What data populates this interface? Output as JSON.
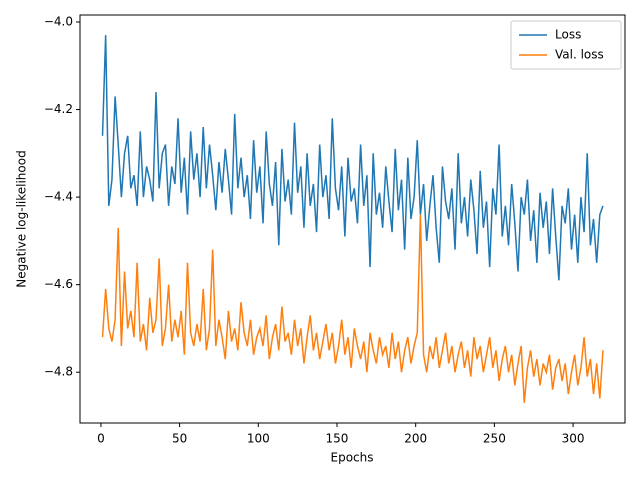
{
  "chart_data": {
    "type": "line",
    "xlabel": "Epochs",
    "ylabel": "Negative log-likelihood",
    "x": [
      1,
      3,
      5,
      7,
      9,
      11,
      13,
      15,
      17,
      19,
      21,
      23,
      25,
      27,
      29,
      31,
      33,
      35,
      37,
      39,
      41,
      43,
      45,
      47,
      49,
      51,
      53,
      55,
      57,
      59,
      61,
      63,
      65,
      67,
      69,
      71,
      73,
      75,
      77,
      79,
      81,
      83,
      85,
      87,
      89,
      91,
      93,
      95,
      97,
      99,
      101,
      103,
      105,
      107,
      109,
      111,
      113,
      115,
      117,
      119,
      121,
      123,
      125,
      127,
      129,
      131,
      133,
      135,
      137,
      139,
      141,
      143,
      145,
      147,
      149,
      151,
      153,
      155,
      157,
      159,
      161,
      163,
      165,
      167,
      169,
      171,
      173,
      175,
      177,
      179,
      181,
      183,
      185,
      187,
      189,
      191,
      193,
      195,
      197,
      199,
      201,
      203,
      205,
      207,
      209,
      211,
      213,
      215,
      217,
      219,
      221,
      223,
      225,
      227,
      229,
      231,
      233,
      235,
      237,
      239,
      241,
      243,
      245,
      247,
      249,
      251,
      253,
      255,
      257,
      259,
      261,
      263,
      265,
      267,
      269,
      271,
      273,
      275,
      277,
      279,
      281,
      283,
      285,
      287,
      289,
      291,
      293,
      295,
      297,
      299,
      301,
      303,
      305,
      307,
      309,
      311,
      313,
      315,
      317,
      319
    ],
    "series": [
      {
        "name": "Loss",
        "color": "#1f77b4",
        "values": [
          -4.26,
          -4.03,
          -4.42,
          -4.36,
          -4.17,
          -4.28,
          -4.4,
          -4.3,
          -4.26,
          -4.38,
          -4.35,
          -4.42,
          -4.25,
          -4.4,
          -4.33,
          -4.36,
          -4.41,
          -4.16,
          -4.38,
          -4.3,
          -4.28,
          -4.42,
          -4.33,
          -4.37,
          -4.22,
          -4.39,
          -4.31,
          -4.44,
          -4.25,
          -4.36,
          -4.3,
          -4.4,
          -4.24,
          -4.38,
          -4.28,
          -4.35,
          -4.43,
          -4.32,
          -4.39,
          -4.29,
          -4.36,
          -4.44,
          -4.21,
          -4.38,
          -4.31,
          -4.4,
          -4.35,
          -4.45,
          -4.27,
          -4.39,
          -4.33,
          -4.46,
          -4.25,
          -4.37,
          -4.42,
          -4.32,
          -4.51,
          -4.29,
          -4.41,
          -4.36,
          -4.44,
          -4.23,
          -4.39,
          -4.33,
          -4.47,
          -4.3,
          -4.42,
          -4.37,
          -4.48,
          -4.28,
          -4.4,
          -4.35,
          -4.45,
          -4.22,
          -4.38,
          -4.43,
          -4.33,
          -4.49,
          -4.31,
          -4.41,
          -4.38,
          -4.46,
          -4.28,
          -4.42,
          -4.35,
          -4.56,
          -4.3,
          -4.44,
          -4.39,
          -4.47,
          -4.33,
          -4.41,
          -4.48,
          -4.29,
          -4.43,
          -4.36,
          -4.52,
          -4.31,
          -4.45,
          -4.4,
          -4.27,
          -4.44,
          -4.37,
          -4.5,
          -4.42,
          -4.35,
          -4.47,
          -4.55,
          -4.33,
          -4.41,
          -4.45,
          -4.38,
          -4.52,
          -4.3,
          -4.46,
          -4.4,
          -4.49,
          -4.36,
          -4.43,
          -4.53,
          -4.34,
          -4.47,
          -4.41,
          -4.56,
          -4.38,
          -4.44,
          -4.28,
          -4.49,
          -4.42,
          -4.51,
          -4.37,
          -4.46,
          -4.57,
          -4.4,
          -4.44,
          -4.36,
          -4.5,
          -4.43,
          -4.55,
          -4.39,
          -4.47,
          -4.41,
          -4.53,
          -4.38,
          -4.49,
          -4.59,
          -4.42,
          -4.46,
          -4.38,
          -4.52,
          -4.44,
          -4.55,
          -4.4,
          -4.48,
          -4.3,
          -4.51,
          -4.45,
          -4.55,
          -4.44,
          -4.42
        ]
      },
      {
        "name": "Val. loss",
        "color": "#ff7f0e",
        "values": [
          -4.72,
          -4.61,
          -4.7,
          -4.73,
          -4.68,
          -4.47,
          -4.74,
          -4.57,
          -4.7,
          -4.66,
          -4.72,
          -4.55,
          -4.73,
          -4.69,
          -4.75,
          -4.63,
          -4.71,
          -4.68,
          -4.54,
          -4.74,
          -4.7,
          -4.6,
          -4.73,
          -4.68,
          -4.72,
          -4.66,
          -4.76,
          -4.55,
          -4.71,
          -4.74,
          -4.69,
          -4.73,
          -4.61,
          -4.75,
          -4.7,
          -4.52,
          -4.74,
          -4.68,
          -4.72,
          -4.77,
          -4.66,
          -4.73,
          -4.7,
          -4.75,
          -4.64,
          -4.71,
          -4.74,
          -4.68,
          -4.76,
          -4.72,
          -4.7,
          -4.74,
          -4.67,
          -4.77,
          -4.72,
          -4.69,
          -4.75,
          -4.65,
          -4.73,
          -4.71,
          -4.76,
          -4.68,
          -4.74,
          -4.7,
          -4.78,
          -4.72,
          -4.67,
          -4.75,
          -4.71,
          -4.77,
          -4.73,
          -4.69,
          -4.75,
          -4.71,
          -4.78,
          -4.74,
          -4.68,
          -4.76,
          -4.72,
          -4.79,
          -4.7,
          -4.74,
          -4.77,
          -4.73,
          -4.8,
          -4.71,
          -4.75,
          -4.78,
          -4.72,
          -4.76,
          -4.74,
          -4.79,
          -4.71,
          -4.77,
          -4.73,
          -4.8,
          -4.75,
          -4.72,
          -4.78,
          -4.74,
          -4.71,
          -4.44,
          -4.76,
          -4.8,
          -4.74,
          -4.77,
          -4.72,
          -4.79,
          -4.75,
          -4.71,
          -4.78,
          -4.74,
          -4.8,
          -4.76,
          -4.73,
          -4.79,
          -4.75,
          -4.81,
          -4.72,
          -4.77,
          -4.74,
          -4.8,
          -4.76,
          -4.72,
          -4.79,
          -4.75,
          -4.82,
          -4.77,
          -4.74,
          -4.8,
          -4.76,
          -4.83,
          -4.78,
          -4.74,
          -4.87,
          -4.79,
          -4.75,
          -4.81,
          -4.77,
          -4.83,
          -4.78,
          -4.8,
          -4.76,
          -4.84,
          -4.79,
          -4.77,
          -4.82,
          -4.78,
          -4.85,
          -4.8,
          -4.76,
          -4.83,
          -4.79,
          -4.72,
          -4.81,
          -4.77,
          -4.85,
          -4.78,
          -4.86,
          -4.75
        ]
      }
    ],
    "xlim": [
      -13.3,
      333
    ],
    "ylim": [
      -4.916,
      -3.984
    ],
    "xticks": [
      0,
      50,
      100,
      150,
      200,
      250,
      300
    ],
    "yticks": [
      {
        "value": -4.0,
        "label": "−4.0"
      },
      {
        "value": -4.2,
        "label": "−4.2"
      },
      {
        "value": -4.4,
        "label": "−4.4"
      },
      {
        "value": -4.6,
        "label": "−4.6"
      },
      {
        "value": -4.8,
        "label": "−4.8"
      }
    ],
    "legend": "upper right"
  }
}
